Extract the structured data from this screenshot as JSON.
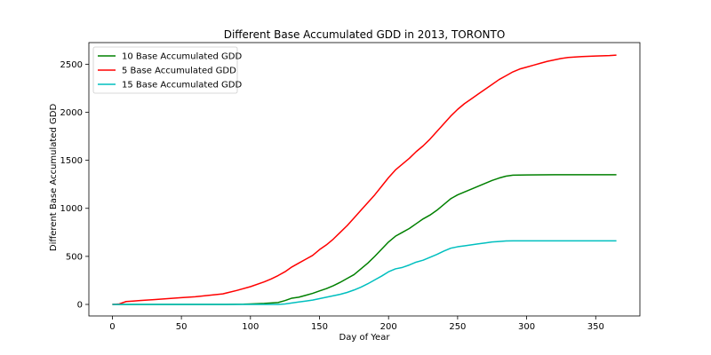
{
  "chart_data": {
    "type": "line",
    "title": "Different Base Accumulated GDD in 2013,  TORONTO",
    "xlabel": "Day of Year",
    "ylabel": "Different Base Accumulated GDD",
    "xlim": [
      -17,
      382
    ],
    "ylim": [
      -120,
      2725
    ],
    "xticks": [
      0,
      50,
      100,
      150,
      200,
      250,
      300,
      350
    ],
    "yticks": [
      0,
      500,
      1000,
      1500,
      2000,
      2500
    ],
    "grid": false,
    "legend_position": "top-left",
    "series": [
      {
        "name": "10 Base Accumulated GDD",
        "color": "#008000",
        "points": [
          [
            0,
            0
          ],
          [
            20,
            0
          ],
          [
            40,
            0
          ],
          [
            60,
            0
          ],
          [
            80,
            0
          ],
          [
            95,
            2
          ],
          [
            100,
            5
          ],
          [
            110,
            10
          ],
          [
            120,
            20
          ],
          [
            125,
            40
          ],
          [
            130,
            65
          ],
          [
            135,
            75
          ],
          [
            140,
            95
          ],
          [
            145,
            115
          ],
          [
            150,
            140
          ],
          [
            155,
            165
          ],
          [
            160,
            195
          ],
          [
            165,
            230
          ],
          [
            170,
            270
          ],
          [
            175,
            310
          ],
          [
            180,
            370
          ],
          [
            185,
            430
          ],
          [
            190,
            500
          ],
          [
            195,
            575
          ],
          [
            200,
            650
          ],
          [
            205,
            710
          ],
          [
            210,
            750
          ],
          [
            215,
            790
          ],
          [
            220,
            840
          ],
          [
            225,
            890
          ],
          [
            230,
            930
          ],
          [
            235,
            980
          ],
          [
            240,
            1040
          ],
          [
            245,
            1100
          ],
          [
            250,
            1140
          ],
          [
            255,
            1170
          ],
          [
            260,
            1200
          ],
          [
            265,
            1230
          ],
          [
            270,
            1260
          ],
          [
            275,
            1290
          ],
          [
            280,
            1315
          ],
          [
            285,
            1335
          ],
          [
            290,
            1345
          ],
          [
            300,
            1348
          ],
          [
            320,
            1350
          ],
          [
            340,
            1350
          ],
          [
            365,
            1350
          ]
        ]
      },
      {
        "name": "5 Base Accumulated GDD",
        "color": "#ff0000",
        "points": [
          [
            0,
            0
          ],
          [
            5,
            5
          ],
          [
            10,
            30
          ],
          [
            15,
            35
          ],
          [
            20,
            40
          ],
          [
            30,
            50
          ],
          [
            40,
            60
          ],
          [
            50,
            70
          ],
          [
            60,
            80
          ],
          [
            70,
            95
          ],
          [
            80,
            110
          ],
          [
            90,
            145
          ],
          [
            100,
            185
          ],
          [
            110,
            235
          ],
          [
            115,
            265
          ],
          [
            120,
            300
          ],
          [
            125,
            340
          ],
          [
            130,
            390
          ],
          [
            135,
            430
          ],
          [
            140,
            470
          ],
          [
            145,
            510
          ],
          [
            150,
            570
          ],
          [
            155,
            620
          ],
          [
            160,
            680
          ],
          [
            165,
            750
          ],
          [
            170,
            820
          ],
          [
            175,
            900
          ],
          [
            180,
            980
          ],
          [
            185,
            1060
          ],
          [
            190,
            1140
          ],
          [
            195,
            1230
          ],
          [
            200,
            1320
          ],
          [
            205,
            1400
          ],
          [
            210,
            1460
          ],
          [
            215,
            1520
          ],
          [
            220,
            1590
          ],
          [
            225,
            1650
          ],
          [
            230,
            1720
          ],
          [
            235,
            1800
          ],
          [
            240,
            1880
          ],
          [
            245,
            1960
          ],
          [
            250,
            2030
          ],
          [
            255,
            2090
          ],
          [
            260,
            2140
          ],
          [
            265,
            2190
          ],
          [
            270,
            2240
          ],
          [
            275,
            2290
          ],
          [
            280,
            2340
          ],
          [
            285,
            2380
          ],
          [
            290,
            2420
          ],
          [
            295,
            2450
          ],
          [
            300,
            2470
          ],
          [
            305,
            2490
          ],
          [
            310,
            2510
          ],
          [
            315,
            2530
          ],
          [
            320,
            2545
          ],
          [
            325,
            2560
          ],
          [
            330,
            2570
          ],
          [
            340,
            2580
          ],
          [
            350,
            2585
          ],
          [
            360,
            2590
          ],
          [
            365,
            2595
          ]
        ]
      },
      {
        "name": "15 Base Accumulated GDD",
        "color": "#00bfbf",
        "points": [
          [
            0,
            0
          ],
          [
            50,
            0
          ],
          [
            100,
            0
          ],
          [
            120,
            0
          ],
          [
            125,
            5
          ],
          [
            130,
            15
          ],
          [
            135,
            25
          ],
          [
            140,
            35
          ],
          [
            145,
            45
          ],
          [
            150,
            60
          ],
          [
            155,
            75
          ],
          [
            160,
            90
          ],
          [
            165,
            105
          ],
          [
            170,
            125
          ],
          [
            175,
            150
          ],
          [
            180,
            180
          ],
          [
            185,
            215
          ],
          [
            190,
            255
          ],
          [
            195,
            295
          ],
          [
            200,
            340
          ],
          [
            205,
            370
          ],
          [
            210,
            385
          ],
          [
            215,
            410
          ],
          [
            220,
            440
          ],
          [
            225,
            460
          ],
          [
            230,
            490
          ],
          [
            235,
            520
          ],
          [
            240,
            555
          ],
          [
            245,
            585
          ],
          [
            250,
            600
          ],
          [
            255,
            610
          ],
          [
            260,
            620
          ],
          [
            265,
            630
          ],
          [
            270,
            640
          ],
          [
            275,
            650
          ],
          [
            280,
            655
          ],
          [
            285,
            660
          ],
          [
            290,
            662
          ],
          [
            300,
            662
          ],
          [
            320,
            662
          ],
          [
            340,
            662
          ],
          [
            365,
            662
          ]
        ]
      }
    ]
  }
}
